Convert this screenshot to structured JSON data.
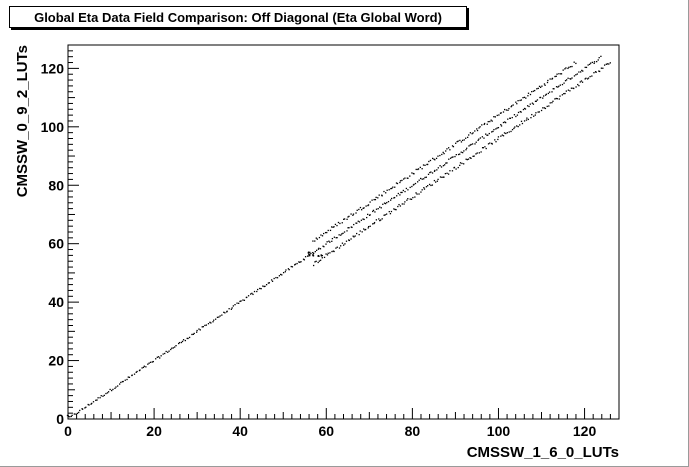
{
  "colors": {
    "frame_fill": "#ffffff",
    "marker": "#000000",
    "text": "#000000"
  },
  "chart_data": {
    "type": "scatter",
    "title": "Global Eta Data Field Comparison: Off Diagonal (Eta Global Word)",
    "xlabel": "CMSSW_1_6_0_LUTs",
    "ylabel": "CMSSW_0_9_2_LUTs",
    "xlim": [
      0,
      128
    ],
    "ylim": [
      0,
      128
    ],
    "x_ticks": [
      0,
      20,
      40,
      60,
      80,
      100,
      120
    ],
    "y_ticks": [
      0,
      20,
      40,
      60,
      80,
      100,
      120
    ],
    "grid": false,
    "legend": "none",
    "series": [
      {
        "points": [
          [
            0,
            1
          ],
          [
            56,
            56
          ],
          [
            56,
            57
          ],
          [
            57,
            56
          ],
          [
            58,
            56
          ],
          [
            59,
            56
          ]
        ],
        "bands": [
          {
            "x_range": [
              0,
              57
            ],
            "slope": 1.0,
            "offset": 0,
            "spread": 0.4
          },
          {
            "x_range": [
              57,
              124
            ],
            "slope": 1.0,
            "offset": 0,
            "spread": 0.5
          },
          {
            "x_range": [
              57,
              118
            ],
            "slope": 1.0,
            "offset": 4,
            "spread": 0.6
          },
          {
            "x_range": [
              57,
              126
            ],
            "slope": 1.0,
            "offset": -4,
            "spread": 0.6
          }
        ]
      }
    ]
  }
}
